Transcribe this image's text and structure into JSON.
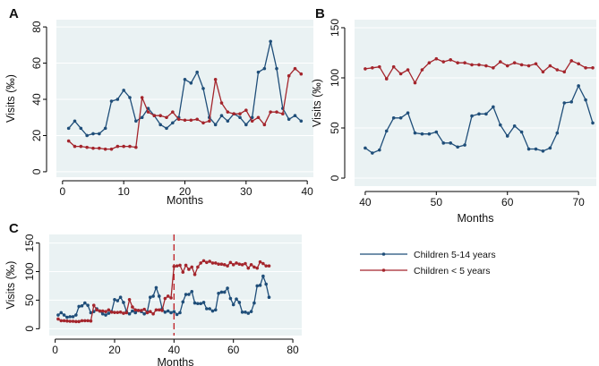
{
  "colors": {
    "series_5_14": "#1f4e79",
    "series_under5": "#a4252c",
    "plot_background": "#eaf2f3",
    "vline": "#c0272d"
  },
  "legend": {
    "items": [
      {
        "label": "Children 5-14 years",
        "color": "#1f4e79"
      },
      {
        "label": "Children < 5 years",
        "color": "#a4252c"
      }
    ]
  },
  "chart_data": [
    {
      "panel": "A",
      "type": "line",
      "xlabel": "Months",
      "ylabel": "Visits (‰)",
      "xlim": [
        -1,
        41
      ],
      "ylim": [
        -3,
        84
      ],
      "xticks": [
        0,
        10,
        20,
        30,
        40
      ],
      "yticks": [
        0,
        20,
        40,
        60,
        80
      ],
      "grid": true,
      "x": [
        1,
        2,
        3,
        4,
        5,
        6,
        7,
        8,
        9,
        10,
        11,
        12,
        13,
        14,
        15,
        16,
        17,
        18,
        19,
        20,
        21,
        22,
        23,
        24,
        25,
        26,
        27,
        28,
        29,
        30,
        31,
        32,
        33,
        34,
        35,
        36,
        37,
        38,
        39
      ],
      "series": [
        {
          "name": "Children 5-14 years",
          "values": [
            24,
            28,
            24,
            20,
            21,
            21,
            24,
            39,
            40,
            45,
            41,
            28,
            30,
            35,
            31,
            26,
            24,
            27,
            30,
            51,
            49,
            55,
            46,
            30,
            26,
            31,
            28,
            32,
            30,
            26,
            30,
            55,
            57,
            72,
            57,
            35,
            29,
            31,
            28
          ]
        },
        {
          "name": "Children < 5 years",
          "values": [
            17,
            14,
            14,
            13.5,
            13,
            13,
            12.5,
            12.5,
            14,
            14,
            14,
            13.5,
            41,
            33,
            31,
            31,
            30,
            33,
            29,
            28.5,
            28.5,
            29,
            27,
            28,
            51,
            38,
            33,
            32,
            32,
            34,
            28,
            30,
            26,
            33,
            33,
            32,
            53,
            57,
            54
          ]
        }
      ]
    },
    {
      "panel": "B",
      "type": "line",
      "xlabel": "Months",
      "ylabel": "Visits (‰)",
      "xlim": [
        38.5,
        72.5
      ],
      "ylim": [
        -8,
        158
      ],
      "xticks": [
        40,
        50,
        60,
        70
      ],
      "yticks": [
        0,
        50,
        100,
        150
      ],
      "grid": true,
      "x": [
        40,
        41,
        42,
        43,
        44,
        45,
        46,
        47,
        48,
        49,
        50,
        51,
        52,
        53,
        54,
        55,
        56,
        57,
        58,
        59,
        60,
        61,
        62,
        63,
        64,
        65,
        66,
        67,
        68,
        69,
        70,
        71,
        72
      ],
      "series": [
        {
          "name": "Children 5-14 years",
          "values": [
            30,
            25,
            28,
            47,
            60,
            60,
            65,
            45,
            44,
            44,
            46,
            35,
            35,
            31,
            33,
            62,
            64,
            64,
            71,
            53,
            42,
            52,
            46,
            29,
            29,
            27,
            30,
            45,
            75,
            76,
            92,
            78,
            55
          ]
        },
        {
          "name": "Children < 5 years",
          "values": [
            109,
            110,
            111,
            99,
            111,
            104,
            108,
            95,
            108,
            115,
            119,
            116,
            118,
            115,
            115,
            113,
            113,
            112,
            110,
            116,
            112,
            115,
            113,
            112,
            114,
            106,
            112,
            108,
            106,
            117,
            114,
            110,
            110
          ]
        }
      ]
    },
    {
      "panel": "C",
      "type": "line",
      "xlabel": "Months",
      "ylabel": "Visits (‰)",
      "xlim": [
        -2,
        83
      ],
      "ylim": [
        -12,
        165
      ],
      "xticks": [
        0,
        20,
        40,
        60,
        80
      ],
      "yticks": [
        0,
        50,
        100,
        150
      ],
      "grid": true,
      "vline_x": 40,
      "x": [
        1,
        2,
        3,
        4,
        5,
        6,
        7,
        8,
        9,
        10,
        11,
        12,
        13,
        14,
        15,
        16,
        17,
        18,
        19,
        20,
        21,
        22,
        23,
        24,
        25,
        26,
        27,
        28,
        29,
        30,
        31,
        32,
        33,
        34,
        35,
        36,
        37,
        38,
        39,
        40,
        41,
        42,
        43,
        44,
        45,
        46,
        47,
        48,
        49,
        50,
        51,
        52,
        53,
        54,
        55,
        56,
        57,
        58,
        59,
        60,
        61,
        62,
        63,
        64,
        65,
        66,
        67,
        68,
        69,
        70,
        71,
        72
      ],
      "series": [
        {
          "name": "Children 5-14 years",
          "values": [
            24,
            28,
            24,
            20,
            21,
            21,
            24,
            39,
            40,
            45,
            41,
            28,
            30,
            35,
            31,
            26,
            24,
            27,
            30,
            51,
            49,
            55,
            46,
            30,
            26,
            31,
            28,
            32,
            30,
            26,
            30,
            55,
            57,
            72,
            57,
            35,
            29,
            31,
            28,
            30,
            25,
            28,
            47,
            60,
            60,
            65,
            45,
            44,
            44,
            46,
            35,
            35,
            31,
            33,
            62,
            64,
            64,
            71,
            53,
            42,
            52,
            46,
            29,
            29,
            27,
            30,
            45,
            75,
            76,
            92,
            78,
            55
          ]
        },
        {
          "name": "Children < 5 years",
          "values": [
            17,
            14,
            14,
            13.5,
            13,
            13,
            12.5,
            12.5,
            14,
            14,
            14,
            13.5,
            41,
            33,
            31,
            31,
            30,
            33,
            29,
            28.5,
            28.5,
            29,
            27,
            28,
            51,
            38,
            33,
            32,
            32,
            34,
            28,
            30,
            26,
            33,
            33,
            32,
            53,
            57,
            54,
            109,
            110,
            111,
            99,
            111,
            104,
            108,
            95,
            108,
            115,
            119,
            116,
            118,
            115,
            115,
            113,
            113,
            112,
            110,
            116,
            112,
            115,
            113,
            112,
            114,
            106,
            112,
            108,
            106,
            117,
            114,
            110,
            110
          ]
        }
      ]
    }
  ]
}
